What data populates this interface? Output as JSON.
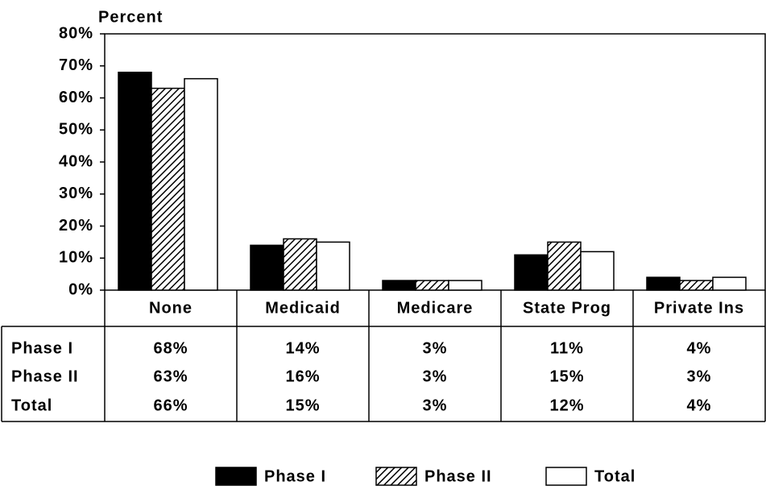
{
  "chart_data": {
    "type": "bar",
    "ylabel": "Percent",
    "categories": [
      "None",
      "Medicaid",
      "Medicare",
      "State Prog",
      "Private Ins"
    ],
    "series": [
      {
        "name": "Phase I",
        "color": "#000000",
        "values": [
          68,
          14,
          3,
          11,
          4
        ],
        "value_labels": [
          "68%",
          "14%",
          "3%",
          "11%",
          "4%"
        ]
      },
      {
        "name": "Phase II",
        "color": "#000000",
        "hatch": true,
        "values": [
          63,
          16,
          3,
          15,
          3
        ],
        "value_labels": [
          "63%",
          "16%",
          "3%",
          "15%",
          "3%"
        ]
      },
      {
        "name": "Total",
        "color": "#ffffff",
        "values": [
          66,
          15,
          3,
          12,
          4
        ],
        "value_labels": [
          "66%",
          "15%",
          "3%",
          "12%",
          "4%"
        ]
      }
    ],
    "ylim": [
      0,
      80
    ],
    "yticks": [
      {
        "value": 0,
        "label": "0%"
      },
      {
        "value": 10,
        "label": "10%"
      },
      {
        "value": 20,
        "label": "20%"
      },
      {
        "value": 30,
        "label": "30%"
      },
      {
        "value": 40,
        "label": "40%"
      },
      {
        "value": 50,
        "label": "50%"
      },
      {
        "value": 60,
        "label": "60%"
      },
      {
        "value": 70,
        "label": "70%"
      },
      {
        "value": 80,
        "label": "80%"
      }
    ],
    "grid": false
  }
}
